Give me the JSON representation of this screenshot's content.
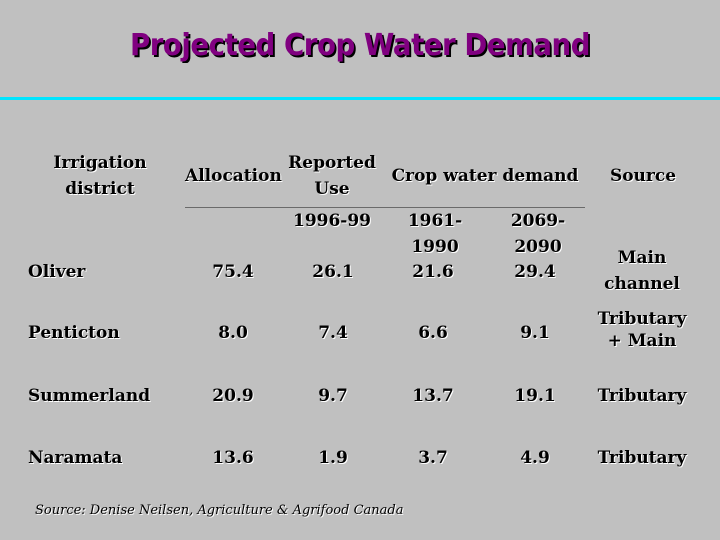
{
  "title": "Projected Crop Water Demand",
  "headers": {
    "district": "Irrigation district",
    "allocation": "Allocation",
    "reported": "Reported Use",
    "reported_period": "1996-99",
    "demand": "Crop water demand",
    "demand_p1": "1961-1990",
    "demand_p2": "2069-2090",
    "source": "Source"
  },
  "rows": [
    {
      "district": "Oliver",
      "allocation": "75.4",
      "reported": "26.1",
      "d1": "21.6",
      "d2": "29.4",
      "source": "Main channel"
    },
    {
      "district": "Penticton",
      "allocation": "8.0",
      "reported": "7.4",
      "d1": "6.6",
      "d2": "9.1",
      "source": "Tributary + Main"
    },
    {
      "district": "Summerland",
      "allocation": "20.9",
      "reported": "9.7",
      "d1": "13.7",
      "d2": "19.1",
      "source": "Tributary"
    },
    {
      "district": "Naramata",
      "allocation": "13.6",
      "reported": "1.9",
      "d1": "3.7",
      "d2": "4.9",
      "source": "Tributary"
    }
  ],
  "footnote": "Source: Denise Neilsen, Agriculture & Agrifood Canada",
  "colors": {
    "background": "#c0c0c0",
    "title": "#800080",
    "rule": "#00e5ff"
  }
}
